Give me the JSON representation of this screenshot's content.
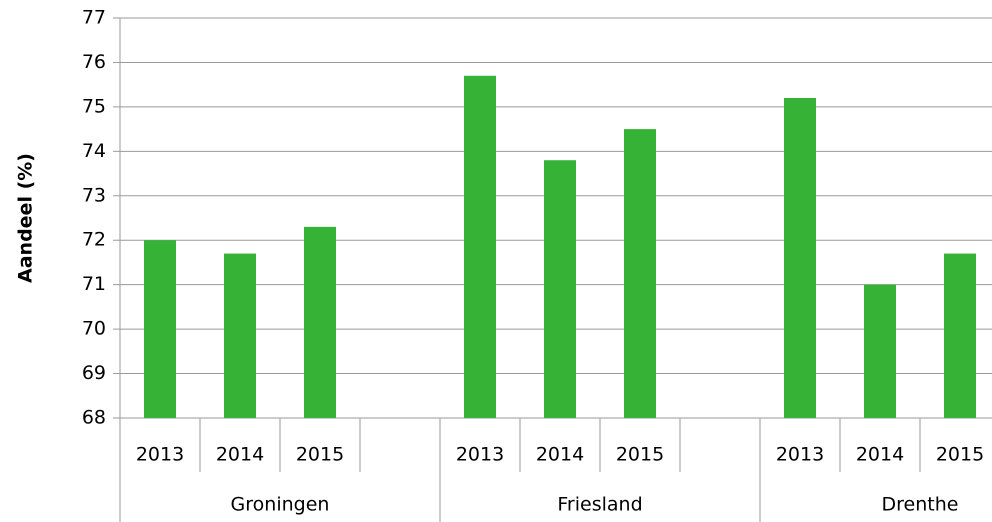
{
  "chart_data": {
    "type": "bar",
    "y_label": "Aandeel (%)",
    "groups": [
      "Groningen",
      "Friesland",
      "Drenthe"
    ],
    "categories": [
      "2013",
      "2014",
      "2015",
      null,
      "2013",
      "2014",
      "2015",
      null,
      "2013",
      "2014",
      "2015",
      null
    ],
    "series": [
      {
        "name": null,
        "color": "#36b336",
        "values": [
          72.0,
          71.7,
          72.3,
          null,
          75.7,
          73.8,
          74.5,
          null,
          75.2,
          71.0,
          71.7,
          null
        ]
      }
    ],
    "ylim": [
      68,
      77
    ],
    "yticks": [
      68,
      69,
      70,
      71,
      72,
      73,
      74,
      75,
      76,
      77
    ],
    "grid": true
  }
}
